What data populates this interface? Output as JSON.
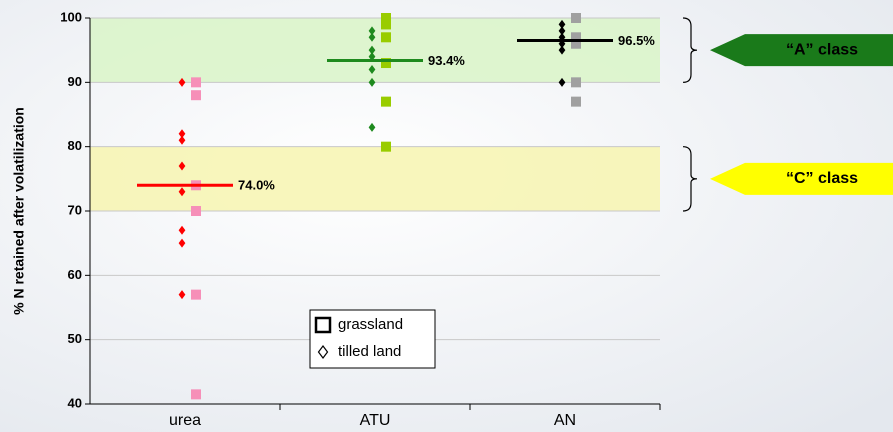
{
  "chart_data": {
    "type": "strip",
    "y_label": "% N retained after volatilization",
    "categories": [
      "urea",
      "ATU",
      "AN"
    ],
    "ylim": [
      40,
      100
    ],
    "yticks": [
      40,
      50,
      60,
      70,
      80,
      90,
      100
    ],
    "grid": true,
    "series": [
      {
        "name": "grassland",
        "marker": "square",
        "colors": [
          "#f68fb8",
          "#99cc00",
          "#a0a0a0"
        ],
        "values": [
          [
            90,
            88,
            74,
            70,
            57,
            41.5
          ],
          [
            100,
            99,
            97,
            93,
            87,
            80
          ],
          [
            100,
            97,
            96,
            90,
            87
          ]
        ]
      },
      {
        "name": "tilled land",
        "marker": "diamond",
        "colors": [
          "#ff0000",
          "#1e8a1e",
          "#000000"
        ],
        "values": [
          [
            90,
            82,
            81,
            77,
            73,
            67,
            65,
            57
          ],
          [
            98,
            97,
            95,
            94,
            92,
            90,
            83
          ],
          [
            99,
            98,
            97,
            96,
            95,
            90
          ]
        ]
      }
    ],
    "means": [
      74.0,
      93.4,
      96.5
    ],
    "mean_labels": [
      "74.0%",
      "93.4%",
      "96.5%"
    ],
    "mean_colors": [
      "#ff0000",
      "#1e8a1e",
      "#000000"
    ],
    "bands": [
      {
        "range": [
          90,
          100
        ],
        "color": "#d9f5c8",
        "label": "“A” class",
        "arrow_color": "#1a7a1a",
        "text_color": "#ffffff"
      },
      {
        "range": [
          70,
          80
        ],
        "color": "#f7f5b0",
        "label": "“C” class",
        "arrow_color": "#ffff00",
        "text_color": "#a0a0a0"
      }
    ]
  }
}
